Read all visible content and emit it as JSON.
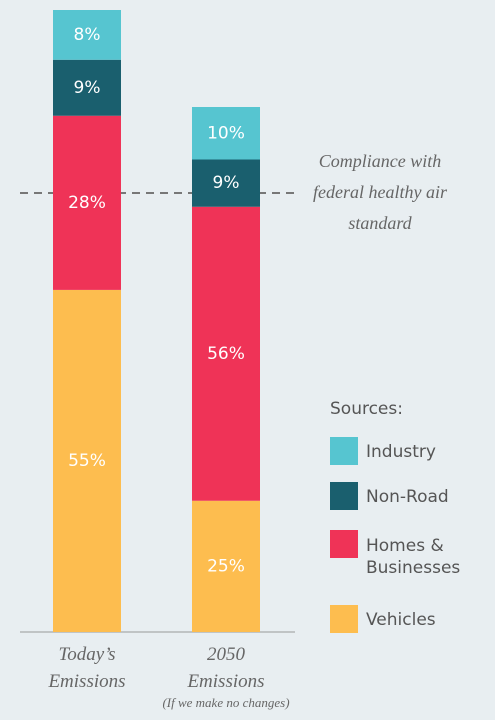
{
  "chart_data": {
    "type": "stacked_bar",
    "categories": [
      "Today’s Emissions",
      "2050 Emissions"
    ],
    "note": "(If we make no changes)",
    "threshold_label": "Compliance with federal healthy air standard",
    "legend_title": "Sources:",
    "series": [
      {
        "name": "Industry",
        "color": "#56c5d0",
        "values": [
          8,
          10
        ],
        "value_labels": [
          "8%",
          "10%"
        ]
      },
      {
        "name": "Non-Road",
        "color": "#1a5f6e",
        "values": [
          9,
          9
        ],
        "value_labels": [
          "9%",
          "9%"
        ]
      },
      {
        "name": "Homes & Businesses",
        "color": "#ef3357",
        "values": [
          28,
          56
        ],
        "value_labels": [
          "28%",
          "56%"
        ]
      },
      {
        "name": "Vehicles",
        "color": "#fdbd4f",
        "values": [
          55,
          25
        ],
        "value_labels": [
          "55%",
          "25%"
        ]
      }
    ]
  }
}
